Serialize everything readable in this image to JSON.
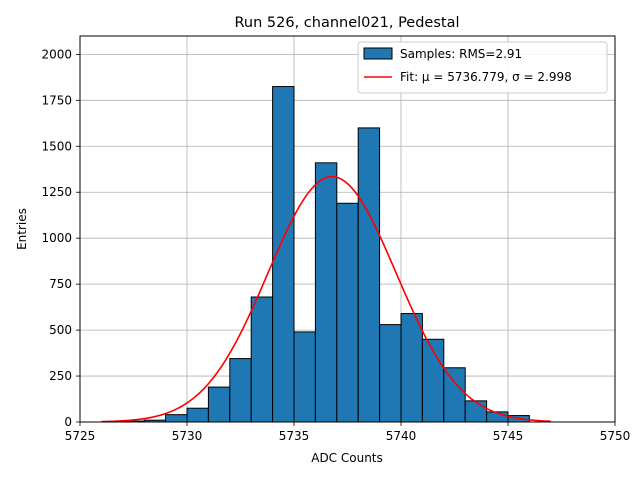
{
  "chart_data": {
    "type": "bar",
    "title": "Run 526, channel021, Pedestal",
    "xlabel": "ADC Counts",
    "ylabel": "Entries",
    "xlim": [
      5725,
      5750
    ],
    "ylim": [
      0,
      2100
    ],
    "xticks": [
      5725,
      5730,
      5735,
      5740,
      5745,
      5750
    ],
    "yticks": [
      0,
      250,
      500,
      750,
      1000,
      1250,
      1500,
      1750,
      2000
    ],
    "grid": true,
    "legend_position": "top-right",
    "histogram": {
      "name": "Samples: RMS=2.91",
      "bin_edges": [
        5727,
        5728,
        5729,
        5730,
        5731,
        5732,
        5733,
        5734,
        5735,
        5736,
        5737,
        5738,
        5739,
        5740,
        5741,
        5742,
        5743,
        5744,
        5745,
        5746
      ],
      "counts": [
        5,
        10,
        40,
        75,
        190,
        345,
        680,
        1825,
        490,
        1410,
        1190,
        1600,
        530,
        590,
        450,
        295,
        115,
        55,
        35
      ],
      "fill_color": "#1f77b4",
      "edge_color": "#000000"
    },
    "fit": {
      "name": "Fit: μ = 5736.779, σ = 2.998",
      "mu": 5736.779,
      "sigma": 2.998,
      "amplitude": 1335,
      "x_range": [
        5726,
        5747
      ],
      "color": "#ff0000"
    }
  }
}
